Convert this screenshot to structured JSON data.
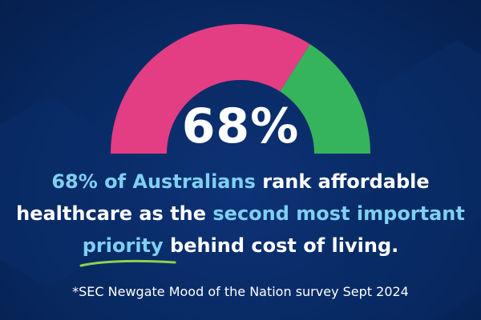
{
  "colors": {
    "background": "#082a63",
    "gauge_primary": "#e33d83",
    "gauge_remainder": "#36b45c",
    "highlight": "#7fd0f2",
    "underline": "#8fd14f"
  },
  "chart_data": {
    "type": "pie",
    "style": "semicircle-gauge",
    "value_label": "68%",
    "slices": [
      {
        "value": 68,
        "color": "#e33d83"
      },
      {
        "value": 32,
        "color": "#36b45c"
      }
    ]
  },
  "statement": {
    "p1": "68% of Australians",
    "p2": " rank affordable healthcare as the ",
    "p3": "second most important ",
    "p4": "priority",
    "p5": " behind cost of living."
  },
  "footnote": "*SEC Newgate Mood of the Nation survey Sept 2024"
}
